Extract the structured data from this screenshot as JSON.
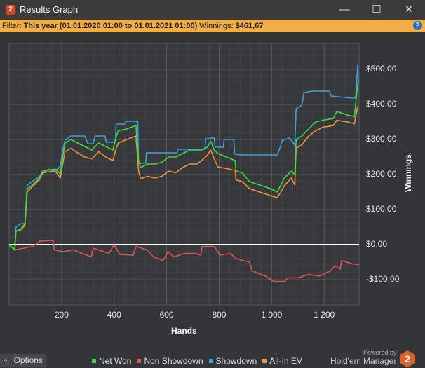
{
  "window": {
    "title": "Results Graph",
    "app_badge": "2",
    "minimize": "—",
    "maximize": "☐",
    "close": "✕"
  },
  "filter": {
    "label": "Filter:",
    "value": "This year (01.01.2020 01:00 to 01.01.2021 01:00)",
    "winnings_label": "Winnings:",
    "winnings_value": "$461,67",
    "help": "?"
  },
  "footer": {
    "options_label": "Options",
    "options_icon": "chevron-up",
    "powered_by": "Powered by",
    "brand": "Hold'em Manager",
    "brand_badge": "2"
  },
  "chart_data": {
    "type": "line",
    "xlabel": "Hands",
    "ylabel": "Winnings",
    "xlim": [
      0,
      1333
    ],
    "ylim": [
      -172,
      574
    ],
    "x_ticks": [
      200,
      400,
      600,
      800,
      1000,
      1200
    ],
    "x_tick_labels": [
      "200",
      "400",
      "600",
      "800",
      "1 000",
      "1 200"
    ],
    "y_ticks": [
      -100,
      0,
      100,
      200,
      300,
      400,
      500
    ],
    "y_tick_labels": [
      "-$100,00",
      "$0,00",
      "$100,00",
      "$200,00",
      "$300,00",
      "$400,00",
      "$500,00"
    ],
    "grid": true,
    "zero_line_color": "#ffffff",
    "legend_position": "bottom",
    "series": [
      {
        "name": "Net Won",
        "color": "#3fd93f",
        "points": [
          [
            0,
            0
          ],
          [
            21,
            -15
          ],
          [
            26,
            38
          ],
          [
            45,
            45
          ],
          [
            60,
            60
          ],
          [
            69,
            158
          ],
          [
            88,
            170
          ],
          [
            115,
            190
          ],
          [
            128,
            210
          ],
          [
            168,
            215
          ],
          [
            181,
            215
          ],
          [
            195,
            200
          ],
          [
            203,
            245
          ],
          [
            213,
            290
          ],
          [
            235,
            300
          ],
          [
            261,
            290
          ],
          [
            288,
            280
          ],
          [
            315,
            270
          ],
          [
            341,
            290
          ],
          [
            368,
            280
          ],
          [
            395,
            270
          ],
          [
            408,
            308
          ],
          [
            416,
            325
          ],
          [
            448,
            330
          ],
          [
            483,
            340
          ],
          [
            493,
            240
          ],
          [
            501,
            220
          ],
          [
            528,
            230
          ],
          [
            555,
            230
          ],
          [
            581,
            235
          ],
          [
            608,
            250
          ],
          [
            635,
            250
          ],
          [
            661,
            260
          ],
          [
            688,
            270
          ],
          [
            715,
            270
          ],
          [
            733,
            270
          ],
          [
            755,
            278
          ],
          [
            768,
            295
          ],
          [
            781,
            270
          ],
          [
            795,
            260
          ],
          [
            861,
            240
          ],
          [
            864,
            210
          ],
          [
            888,
            205
          ],
          [
            915,
            180
          ],
          [
            955,
            170
          ],
          [
            995,
            160
          ],
          [
            1021,
            150
          ],
          [
            1035,
            170
          ],
          [
            1048,
            190
          ],
          [
            1075,
            210
          ],
          [
            1088,
            200
          ],
          [
            1093,
            300
          ],
          [
            1115,
            310
          ],
          [
            1141,
            330
          ],
          [
            1168,
            350
          ],
          [
            1195,
            355
          ],
          [
            1235,
            360
          ],
          [
            1248,
            380
          ],
          [
            1288,
            370
          ],
          [
            1315,
            365
          ],
          [
            1328,
            460
          ]
        ]
      },
      {
        "name": "Non Showdown",
        "color": "#e05252",
        "points": [
          [
            0,
            0
          ],
          [
            22,
            -15
          ],
          [
            91,
            -5
          ],
          [
            117,
            10
          ],
          [
            168,
            12
          ],
          [
            172,
            -15
          ],
          [
            205,
            -20
          ],
          [
            246,
            -15
          ],
          [
            278,
            -25
          ],
          [
            313,
            -35
          ],
          [
            320,
            -10
          ],
          [
            380,
            -25
          ],
          [
            400,
            0
          ],
          [
            422,
            -28
          ],
          [
            473,
            -30
          ],
          [
            483,
            -5
          ],
          [
            525,
            -15
          ],
          [
            550,
            -35
          ],
          [
            586,
            -45
          ],
          [
            606,
            -20
          ],
          [
            627,
            -35
          ],
          [
            668,
            -25
          ],
          [
            709,
            -25
          ],
          [
            730,
            -30
          ],
          [
            735,
            -5
          ],
          [
            781,
            -5
          ],
          [
            803,
            -30
          ],
          [
            843,
            -25
          ],
          [
            864,
            -40
          ],
          [
            916,
            -50
          ],
          [
            925,
            -75
          ],
          [
            977,
            -90
          ],
          [
            1007,
            -105
          ],
          [
            1049,
            -105
          ],
          [
            1060,
            -95
          ],
          [
            1101,
            -95
          ],
          [
            1140,
            -85
          ],
          [
            1183,
            -90
          ],
          [
            1224,
            -75
          ],
          [
            1241,
            -60
          ],
          [
            1261,
            -70
          ],
          [
            1266,
            -45
          ],
          [
            1307,
            -55
          ],
          [
            1333,
            -57
          ]
        ]
      },
      {
        "name": "Showdown",
        "color": "#3d9ee0",
        "points": [
          [
            0,
            0
          ],
          [
            21,
            -15
          ],
          [
            26,
            50
          ],
          [
            45,
            60
          ],
          [
            60,
            60
          ],
          [
            69,
            170
          ],
          [
            115,
            195
          ],
          [
            150,
            215
          ],
          [
            181,
            210
          ],
          [
            195,
            225
          ],
          [
            203,
            265
          ],
          [
            213,
            298
          ],
          [
            235,
            310
          ],
          [
            288,
            310
          ],
          [
            300,
            288
          ],
          [
            320,
            288
          ],
          [
            328,
            310
          ],
          [
            365,
            310
          ],
          [
            370,
            292
          ],
          [
            405,
            292
          ],
          [
            408,
            344
          ],
          [
            440,
            344
          ],
          [
            445,
            352
          ],
          [
            490,
            352
          ],
          [
            493,
            232
          ],
          [
            520,
            232
          ],
          [
            523,
            262
          ],
          [
            640,
            262
          ],
          [
            643,
            272
          ],
          [
            745,
            272
          ],
          [
            749,
            302
          ],
          [
            781,
            305
          ],
          [
            784,
            278
          ],
          [
            816,
            278
          ],
          [
            819,
            300
          ],
          [
            856,
            300
          ],
          [
            859,
            258
          ],
          [
            882,
            256
          ],
          [
            1021,
            256
          ],
          [
            1028,
            268
          ],
          [
            1041,
            298
          ],
          [
            1069,
            304
          ],
          [
            1088,
            284
          ],
          [
            1093,
            388
          ],
          [
            1115,
            398
          ],
          [
            1123,
            434
          ],
          [
            1155,
            438
          ],
          [
            1221,
            438
          ],
          [
            1227,
            424
          ],
          [
            1309,
            418
          ],
          [
            1320,
            418
          ],
          [
            1328,
            512
          ],
          [
            1330,
            458
          ]
        ]
      },
      {
        "name": "All-In EV",
        "color": "#f0923a",
        "points": [
          [
            0,
            0
          ],
          [
            21,
            -15
          ],
          [
            26,
            38
          ],
          [
            45,
            42
          ],
          [
            60,
            55
          ],
          [
            69,
            150
          ],
          [
            88,
            165
          ],
          [
            115,
            185
          ],
          [
            128,
            205
          ],
          [
            168,
            210
          ],
          [
            181,
            205
          ],
          [
            195,
            190
          ],
          [
            203,
            225
          ],
          [
            213,
            265
          ],
          [
            235,
            275
          ],
          [
            261,
            262
          ],
          [
            288,
            250
          ],
          [
            315,
            245
          ],
          [
            341,
            265
          ],
          [
            368,
            250
          ],
          [
            395,
            240
          ],
          [
            408,
            275
          ],
          [
            416,
            290
          ],
          [
            448,
            300
          ],
          [
            483,
            310
          ],
          [
            493,
            210
          ],
          [
            501,
            188
          ],
          [
            528,
            195
          ],
          [
            555,
            190
          ],
          [
            581,
            195
          ],
          [
            608,
            210
          ],
          [
            635,
            205
          ],
          [
            661,
            220
          ],
          [
            688,
            230
          ],
          [
            715,
            230
          ],
          [
            733,
            240
          ],
          [
            755,
            255
          ],
          [
            768,
            270
          ],
          [
            781,
            245
          ],
          [
            795,
            222
          ],
          [
            861,
            212
          ],
          [
            864,
            185
          ],
          [
            888,
            180
          ],
          [
            915,
            160
          ],
          [
            955,
            150
          ],
          [
            995,
            140
          ],
          [
            1021,
            134
          ],
          [
            1035,
            150
          ],
          [
            1048,
            168
          ],
          [
            1075,
            190
          ],
          [
            1088,
            170
          ],
          [
            1093,
            275
          ],
          [
            1115,
            285
          ],
          [
            1141,
            310
          ],
          [
            1168,
            325
          ],
          [
            1195,
            335
          ],
          [
            1235,
            340
          ],
          [
            1248,
            355
          ],
          [
            1288,
            350
          ],
          [
            1315,
            345
          ],
          [
            1328,
            395
          ]
        ]
      }
    ]
  }
}
